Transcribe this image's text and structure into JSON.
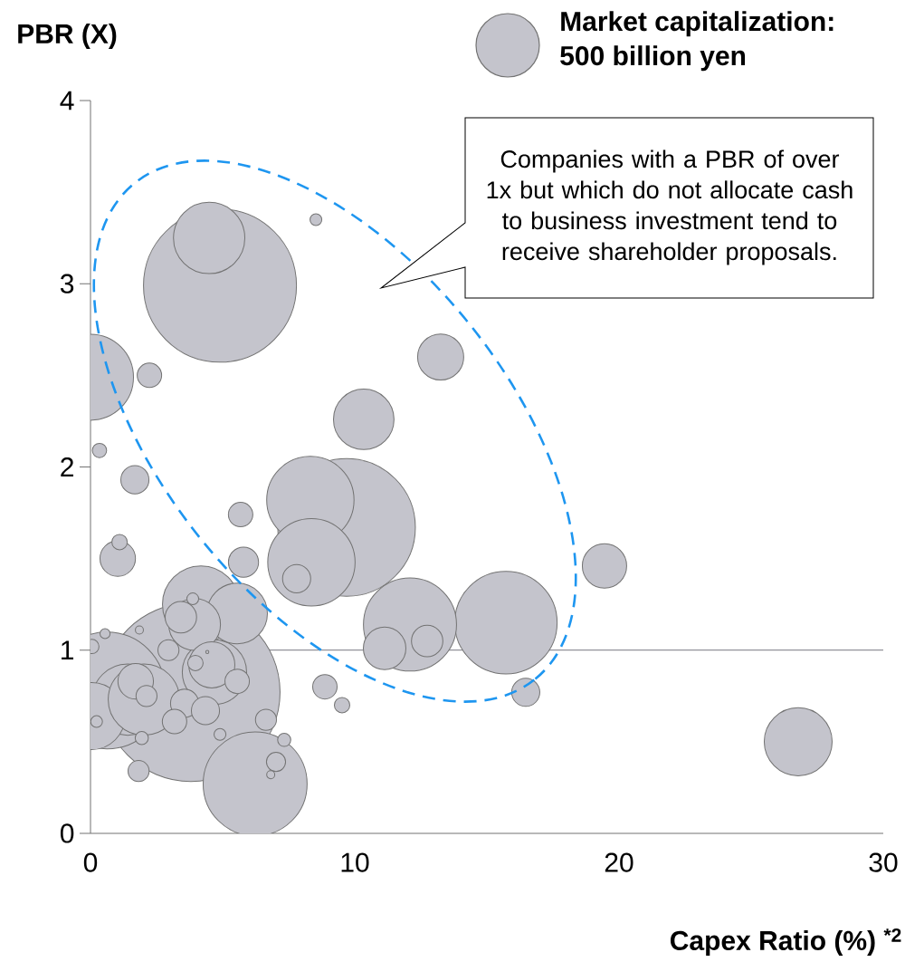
{
  "chart_data": {
    "type": "bubble",
    "xlabel": "Capex Ratio (%) $^{*2}$",
    "ylabel": "PBR (X)",
    "legend_title": "Market capitalization:",
    "size_legend": [
      {
        "value": 500,
        "label": "500 billion yen"
      }
    ],
    "annotations": [
      "Companies with a PBR of over 1x but which do not allocate cash to business investment tend to receive shareholder proposals."
    ],
    "xlim": [
      0,
      30
    ],
    "xticks": [
      0,
      10,
      20,
      30
    ],
    "ylim": [
      0,
      4
    ],
    "yticks": [
      0,
      1,
      2,
      3,
      4
    ],
    "ref_lines": [
      {
        "axis": "y",
        "value": 1,
        "color": "#6e6e78"
      }
    ],
    "series": [
      {
        "color": "#c4c4cc",
        "x": [
          3.8,
          4.9,
          9.69,
          0.62,
          1.41,
          6.23,
          15.72,
          12.09,
          8.32,
          8.36,
          0.0,
          4.18,
          0.04,
          4.49,
          2.02,
          26.78,
          4.69,
          5.55,
          10.34,
          3.94,
          13.25,
          4.59,
          19.45,
          11.13,
          1.03,
          1.71,
          12.74,
          3.42,
          5.79,
          7.8,
          16.47,
          1.68,
          3.56,
          4.35,
          2.23,
          5.68,
          8.87,
          3.18,
          5.55,
          1.1,
          9.52,
          3.97,
          0.34,
          0.05,
          2.95,
          2.12,
          6.64,
          1.82,
          7.02,
          1.94,
          7.33,
          4.9,
          0.55,
          8.53,
          3.87,
          0.23,
          1.85,
          6.82,
          4.42
        ],
        "values": [
          0.77,
          2.99,
          1.67,
          0.78,
          0.73,
          0.27,
          1.15,
          1.14,
          1.82,
          1.48,
          2.49,
          1.25,
          0.64,
          3.25,
          0.73,
          0.5,
          0.88,
          1.2,
          2.26,
          1.14,
          2.6,
          0.92,
          1.46,
          1.01,
          1.5,
          0.83,
          1.05,
          1.18,
          1.48,
          1.39,
          0.77,
          1.93,
          0.71,
          0.67,
          2.5,
          1.74,
          0.8,
          0.61,
          0.83,
          1.59,
          0.7,
          0.93,
          2.09,
          1.02,
          1.0,
          0.75,
          0.62,
          0.34,
          0.39,
          0.52,
          0.51,
          0.54,
          1.09,
          3.35,
          1.28,
          0.61,
          1.11,
          0.32,
          0.99
        ],
        "sizes": [
          4000,
          2950,
          2390,
          1720,
          650,
          1370,
          1330,
          1100,
          970,
          970,
          940,
          755,
          575,
          650,
          650,
          590,
          530,
          470,
          470,
          345,
          275,
          275,
          255,
          235,
          165,
          165,
          130,
          130,
          120,
          105,
          105,
          105,
          105,
          105,
          80,
          80,
          80,
          80,
          80,
          45,
          45,
          45,
          40,
          40,
          60,
          60,
          60,
          60,
          50,
          35,
          35,
          30,
          15,
          20,
          20,
          20,
          10,
          10,
          2
        ]
      }
    ]
  }
}
